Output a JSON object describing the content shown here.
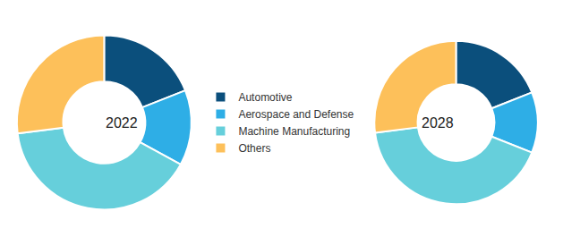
{
  "chart_data": [
    {
      "type": "pie",
      "title": "2022",
      "categories": [
        "Automotive",
        "Aerospace and Defense",
        "Machine Manufacturing",
        "Others"
      ],
      "values": [
        19,
        14,
        40,
        27
      ],
      "colors": [
        "#0b4f7c",
        "#2eaee6",
        "#66cfdb",
        "#fdc05a"
      ],
      "legend": "center"
    },
    {
      "type": "pie",
      "title": "2028",
      "categories": [
        "Automotive",
        "Aerospace and Defense",
        "Machine Manufacturing",
        "Others"
      ],
      "values": [
        19,
        12,
        42,
        27
      ],
      "colors": [
        "#0b4f7c",
        "#2eaee6",
        "#66cfdb",
        "#fdc05a"
      ],
      "legend": "center"
    }
  ]
}
